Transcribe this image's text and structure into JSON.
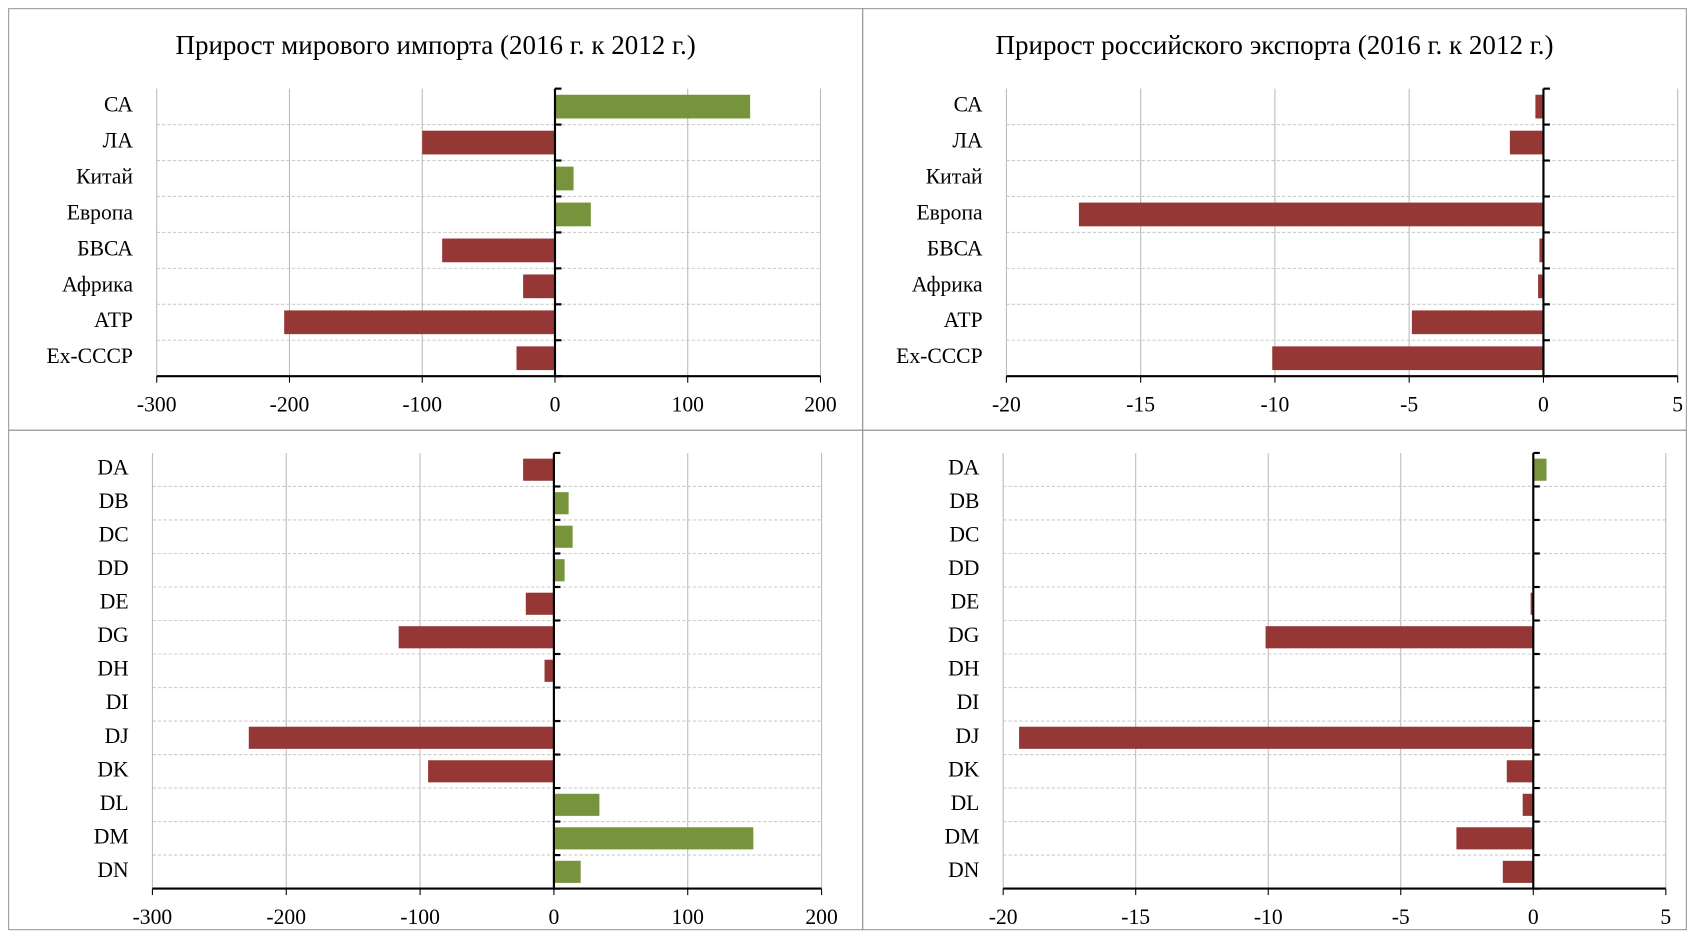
{
  "chart_data": [
    {
      "type": "barh",
      "title": "Прирост мирового импорта (2016 г. к 2012 г.)",
      "categories": [
        "СА",
        "ЛА",
        "Китай",
        "Европа",
        "БВСА",
        "Африка",
        "АТР",
        "Ex-СССР"
      ],
      "values": [
        147,
        -100,
        14,
        27,
        -85,
        -24,
        -204,
        -29
      ],
      "xlim": [
        -300,
        200
      ],
      "xticks": [
        -300,
        -200,
        -100,
        0,
        100,
        200
      ],
      "grid": true,
      "positive_color": "#77933c",
      "negative_color": "#953735"
    },
    {
      "type": "barh",
      "title": "Прирост российского экспорта (2016 г. к 2012 г.)",
      "categories": [
        "СА",
        "ЛА",
        "Китай",
        "Европа",
        "БВСА",
        "Африка",
        "АТР",
        "Ex-СССР"
      ],
      "values": [
        -0.3,
        -1.25,
        0,
        -17.3,
        -0.15,
        -0.2,
        -4.9,
        -10.1
      ],
      "xlim": [
        -20,
        5
      ],
      "xticks": [
        -20,
        -15,
        -10,
        -5,
        0,
        5
      ],
      "grid": true,
      "positive_color": "#77933c",
      "negative_color": "#953735"
    },
    {
      "type": "barh",
      "categories": [
        "DA",
        "DB",
        "DC",
        "DD",
        "DE",
        "DG",
        "DH",
        "DI",
        "DJ",
        "DK",
        "DL",
        "DM",
        "DN"
      ],
      "values": [
        -23,
        11,
        14,
        8,
        -21,
        -116,
        -7,
        0,
        -228,
        -94,
        34,
        149,
        20
      ],
      "xlim": [
        -300,
        200
      ],
      "xticks": [
        -300,
        -200,
        -100,
        0,
        100,
        200
      ],
      "grid": true,
      "positive_color": "#77933c",
      "negative_color": "#953735"
    },
    {
      "type": "barh",
      "categories": [
        "DA",
        "DB",
        "DC",
        "DD",
        "DE",
        "DG",
        "DH",
        "DI",
        "DJ",
        "DK",
        "DL",
        "DM",
        "DN"
      ],
      "values": [
        0.5,
        0,
        0,
        0,
        -0.1,
        -10.1,
        0,
        0,
        -19.4,
        -1.0,
        -0.4,
        -2.9,
        -1.15
      ],
      "xlim": [
        -20,
        5
      ],
      "xticks": [
        -20,
        -15,
        -10,
        -5,
        0,
        5
      ],
      "grid": true,
      "positive_color": "#77933c",
      "negative_color": "#953735"
    }
  ]
}
